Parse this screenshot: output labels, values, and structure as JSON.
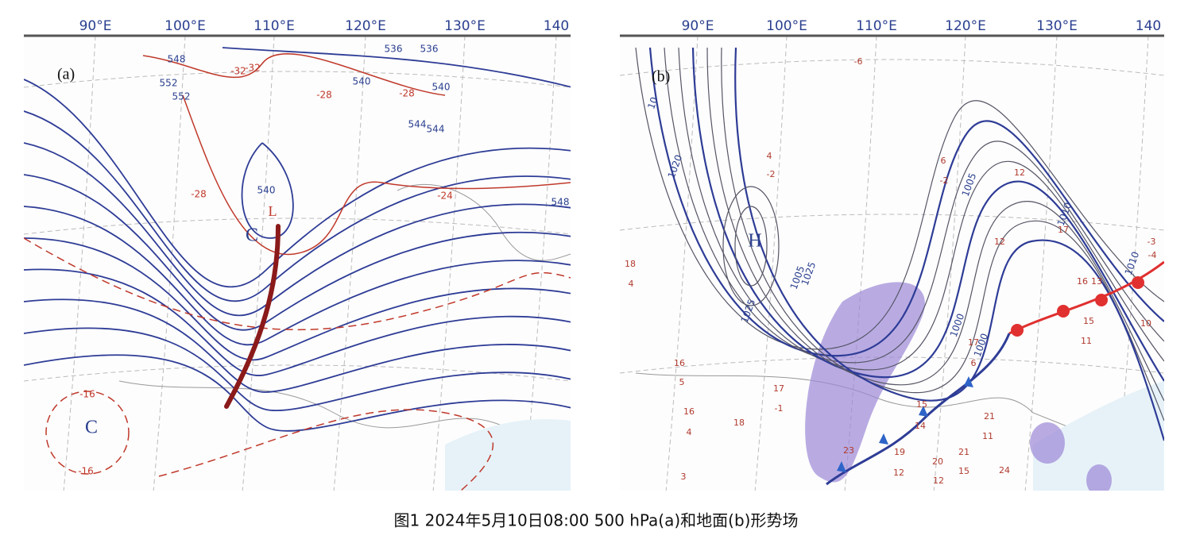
{
  "panels": [
    {
      "label": "(a)",
      "longitudes": [
        "90°E",
        "100°E",
        "110°E",
        "120°E",
        "130°E",
        "140"
      ],
      "contour_labels": [
        "536",
        "536",
        "540",
        "540",
        "544",
        "544",
        "548",
        "548",
        "552",
        "552",
        "-32",
        "-32",
        "-28",
        "-28",
        "-28",
        "-24",
        "-16",
        "-16",
        "540"
      ],
      "systems": [
        "C",
        "L",
        "C"
      ]
    },
    {
      "label": "(b)",
      "longitudes": [
        "90°E",
        "100°E",
        "110°E",
        "120°E",
        "130°E",
        "140"
      ],
      "contour_labels": [
        "1025",
        "1025",
        "1020",
        "1010",
        "1010",
        "1005",
        "1005",
        "1000",
        "1000",
        "10"
      ],
      "systems": [
        "H"
      ],
      "station_values": [
        "4",
        "-2",
        "-6",
        "6",
        "-2",
        "12",
        "12",
        "17",
        "16",
        "13",
        "15",
        "11",
        "17",
        "6",
        "15",
        "14",
        "21",
        "11",
        "19",
        "12",
        "20",
        "12",
        "21",
        "15",
        "24",
        "23",
        "16",
        "5",
        "16",
        "4",
        "18",
        "3",
        "17",
        "-1",
        "18",
        "4",
        "-3",
        "10",
        "-4"
      ]
    }
  ],
  "caption": "图1  2024年5月10日08:00 500 hPa(a)和地面(b)形势场"
}
